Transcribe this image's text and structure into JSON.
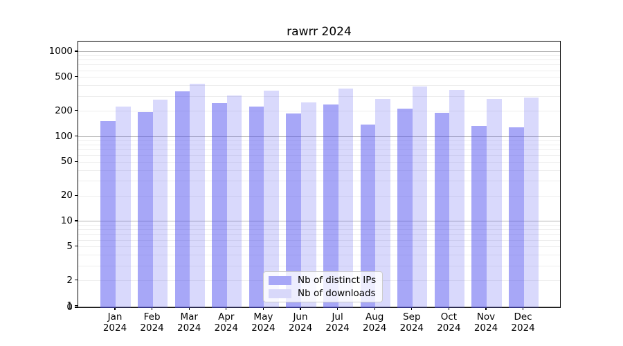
{
  "chart_data": {
    "type": "bar",
    "title": "rawrr 2024",
    "year": "2024",
    "categories": [
      "Jan",
      "Feb",
      "Mar",
      "Apr",
      "May",
      "Jun",
      "Jul",
      "Aug",
      "Sep",
      "Oct",
      "Nov",
      "Dec"
    ],
    "xtick_label_format": "{month}\n{year}",
    "series": [
      {
        "name": "Nb of distinct IPs",
        "color_hex": "#a7a7f7",
        "color_rgba": "rgba(80,80,240,0.5)",
        "values": [
          154,
          196,
          340,
          250,
          227,
          188,
          241,
          140,
          215,
          193,
          134,
          128
        ]
      },
      {
        "name": "Nb of downloads",
        "color_hex": "#d8d8fa",
        "color_rgba": "rgba(80,80,240,0.22)",
        "values": [
          225,
          272,
          421,
          304,
          351,
          255,
          368,
          280,
          391,
          356,
          278,
          290
        ]
      }
    ],
    "yscale": "log",
    "yticks": [
      0,
      1,
      2,
      5,
      10,
      20,
      50,
      100,
      200,
      500,
      1000
    ],
    "ylim": [
      0,
      1300
    ],
    "grid": true,
    "legend_position": "lower center"
  }
}
